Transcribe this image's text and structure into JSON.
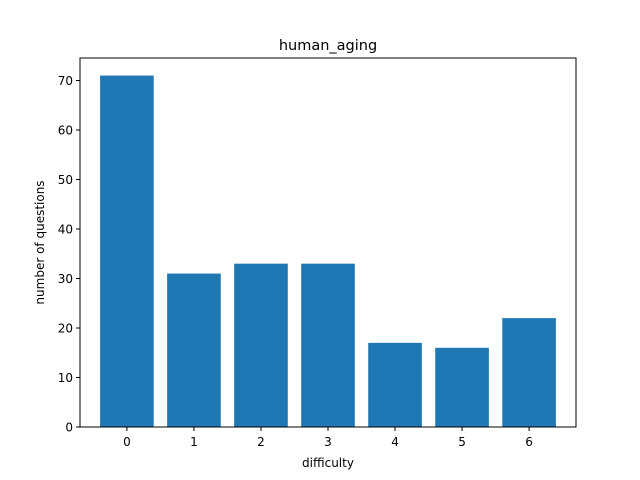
{
  "chart_data": {
    "type": "bar",
    "title": "human_aging",
    "xlabel": "difficulty",
    "ylabel": "number of questions",
    "categories": [
      "0",
      "1",
      "2",
      "3",
      "4",
      "5",
      "6"
    ],
    "values": [
      71,
      31,
      33,
      33,
      17,
      16,
      22
    ],
    "ylim": [
      0,
      74.55
    ],
    "yticks": [
      0,
      10,
      20,
      30,
      40,
      50,
      60,
      70
    ],
    "bar_color": "#1f77b4",
    "grid": false,
    "legend": "none"
  }
}
